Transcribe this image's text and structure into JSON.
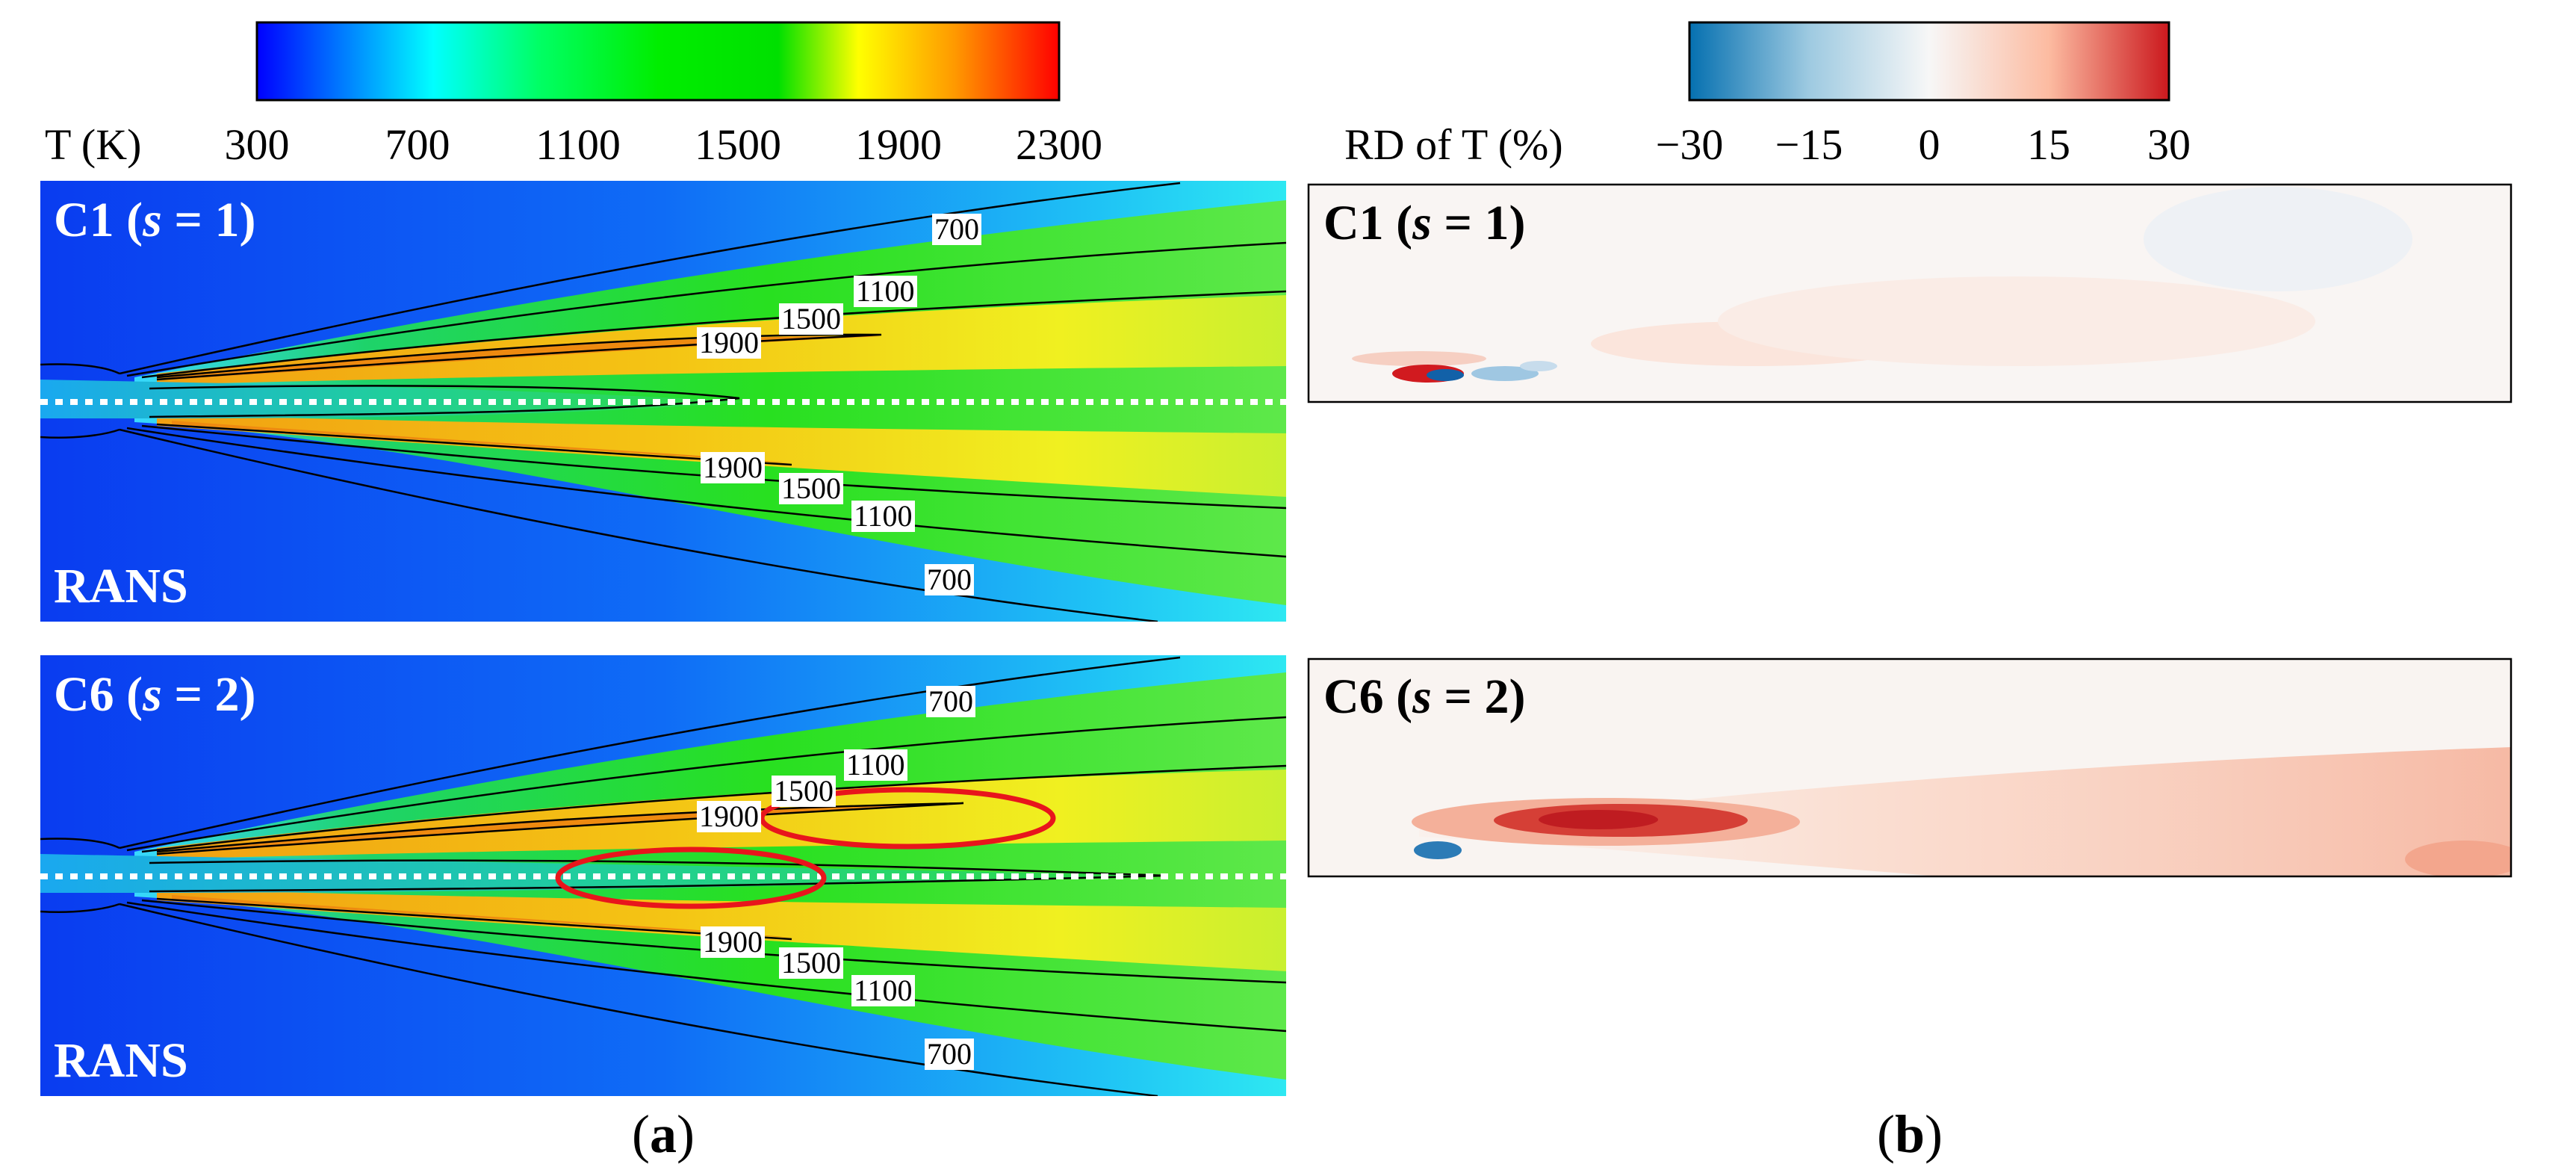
{
  "colorbar_a": {
    "label": "T (K)",
    "ticks": [
      "300",
      "700",
      "1100",
      "1500",
      "1900",
      "2300"
    ],
    "colors": [
      "#0000ff",
      "#00ffff",
      "#00ff00",
      "#00e600",
      "#ffff00",
      "#ff8c00",
      "#ff0000"
    ]
  },
  "colorbar_b": {
    "label": "RD of T (%)",
    "ticks": [
      "−30",
      "−15",
      "0",
      "15",
      "30"
    ],
    "colors": [
      "#0570b0",
      "#9ecae1",
      "#f7f7f7",
      "#fcbba1",
      "#cb181d"
    ]
  },
  "panel_a1": {
    "case": "C1",
    "s_var": "s",
    "s_eq": " = 1",
    "method": "RANS",
    "contour_labels": [
      "700",
      "1100",
      "1500",
      "1900",
      "1900",
      "1500",
      "1100",
      "700"
    ]
  },
  "panel_a2": {
    "case": "C6",
    "s_var": "s",
    "s_eq": " = 2",
    "method": "RANS",
    "contour_labels": [
      "700",
      "1100",
      "1500",
      "1900",
      "1900",
      "1500",
      "1100",
      "700"
    ]
  },
  "panel_b1": {
    "case": "C1",
    "s_var": "s",
    "s_eq": " = 1"
  },
  "panel_b2": {
    "case": "C6",
    "s_var": "s",
    "s_eq": " = 2"
  },
  "subfigure_labels": {
    "a": "a",
    "b": "b"
  },
  "colors": {
    "highlight": "#e8151c",
    "contour": "#000000",
    "centerline": "#ffffff"
  }
}
